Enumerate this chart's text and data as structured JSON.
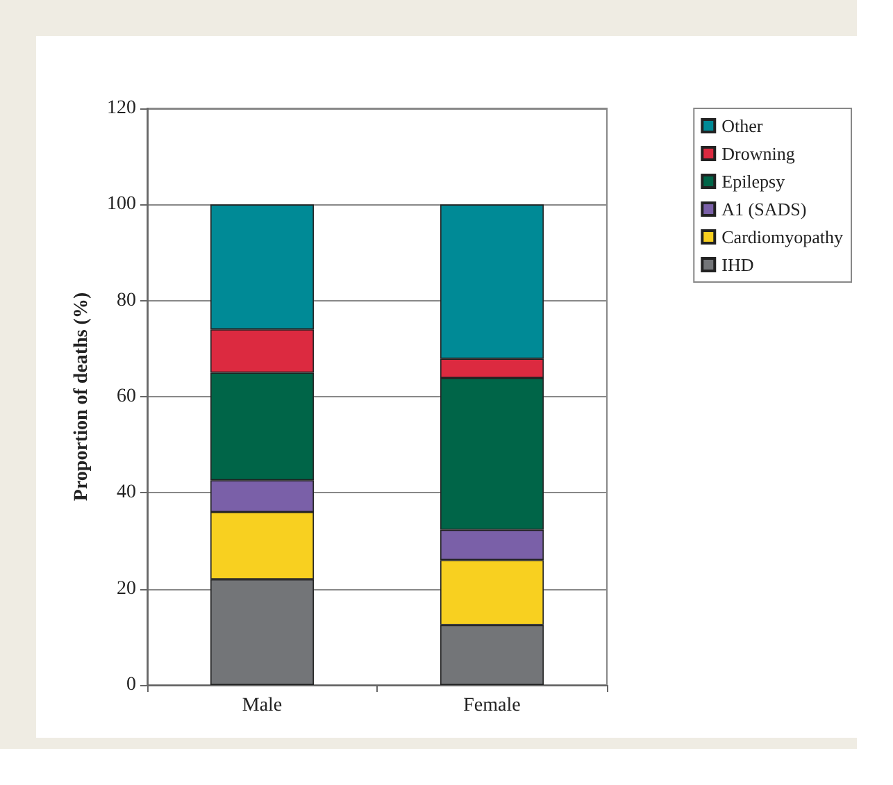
{
  "chart_data": {
    "type": "bar",
    "stacked": true,
    "ylabel": "Proportion of deaths (%)",
    "categories": [
      "Male",
      "Female"
    ],
    "ylim": [
      0,
      120
    ],
    "yticks": [
      0,
      20,
      40,
      60,
      80,
      100,
      120
    ],
    "grid": "y",
    "legend": "top right",
    "series": [
      {
        "name": "IHD",
        "color": "#737578",
        "values": [
          22,
          12.5
        ]
      },
      {
        "name": "Cardiomyopathy",
        "color": "#f8d020",
        "values": [
          14,
          13.5
        ]
      },
      {
        "name": "A1 (SADS)",
        "color": "#7a60a8",
        "values": [
          6.6,
          6.3
        ]
      },
      {
        "name": "Epilepsy",
        "color": "#006548",
        "values": [
          22.4,
          31.6
        ]
      },
      {
        "name": "Drowning",
        "color": "#dc2a40",
        "values": [
          9,
          4
        ]
      },
      {
        "name": "Other",
        "color": "#008a96",
        "values": [
          26,
          32.1
        ]
      }
    ]
  }
}
